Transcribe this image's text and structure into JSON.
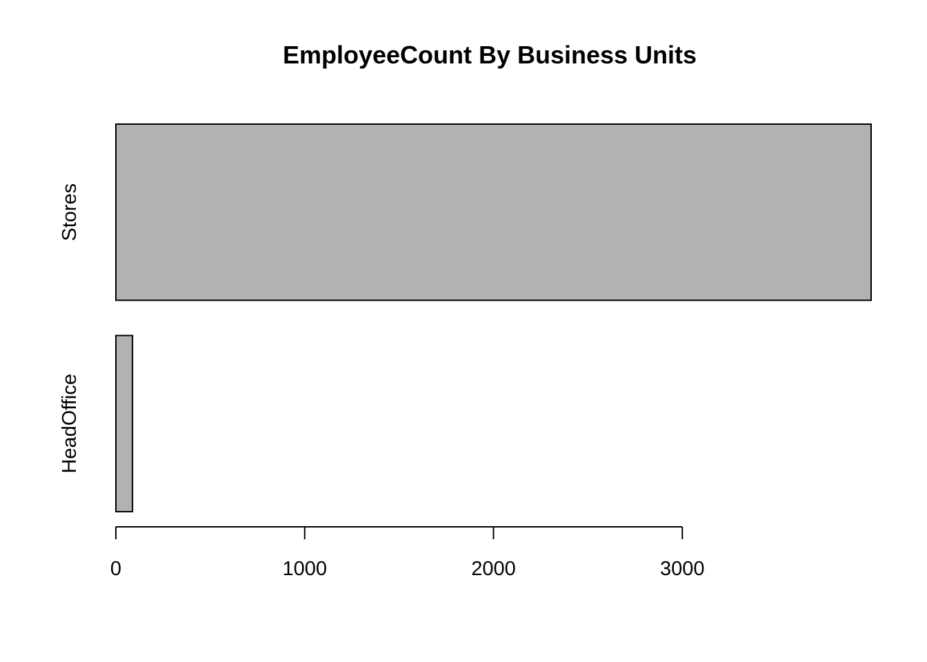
{
  "chart_data": {
    "type": "bar",
    "orientation": "horizontal",
    "title": "EmployeeCount By Business Units",
    "xlabel": "",
    "ylabel": "",
    "categories": [
      "HeadOffice",
      "Stores"
    ],
    "values": [
      88,
      4000
    ],
    "xlim": [
      0,
      4000
    ],
    "x_ticks": [
      0,
      1000,
      2000,
      3000
    ],
    "grid": false,
    "legend": "none",
    "colors": {
      "bar_fill": "#b2b2b2",
      "bar_stroke": "#000000",
      "axis": "#000000",
      "background": "#ffffff"
    }
  }
}
